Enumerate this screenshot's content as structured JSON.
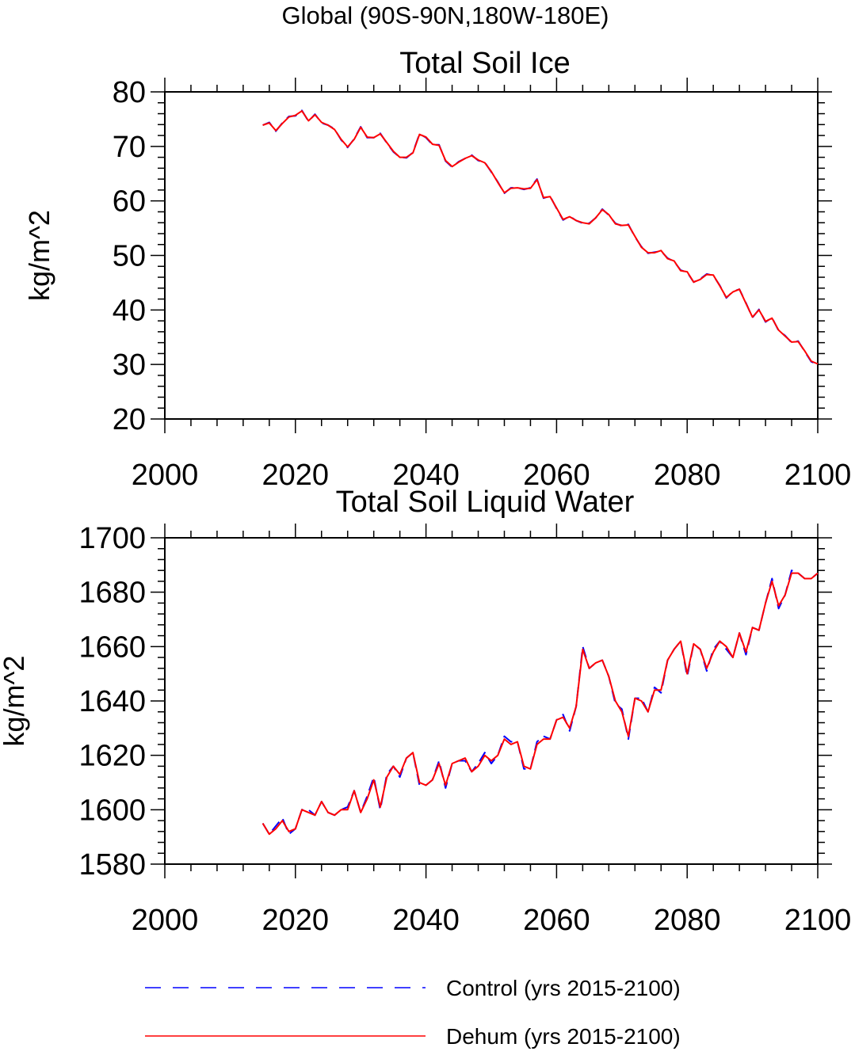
{
  "page_title": "Global (90S-90N,180W-180E)",
  "legend": {
    "items": [
      {
        "label": "Control (yrs 2015-2100)",
        "color": "#0000ff",
        "style": "dashed"
      },
      {
        "label": "Dehum (yrs 2015-2100)",
        "color": "#ff0000",
        "style": "solid"
      }
    ]
  },
  "chart_data": [
    {
      "type": "line",
      "title": "Total Soil Ice",
      "xlabel": "",
      "ylabel": "kg/m^2",
      "xlim": [
        2000,
        2100
      ],
      "ylim": [
        20,
        80
      ],
      "xticks": [
        2000,
        2020,
        2040,
        2060,
        2080,
        2100
      ],
      "yticks": [
        20,
        30,
        40,
        50,
        60,
        70,
        80
      ],
      "x_start": 2015,
      "series": [
        {
          "name": "Control (yrs 2015-2100)",
          "color": "#0000ff",
          "values": [
            73.9,
            74.4,
            72.8,
            74.3,
            75.5,
            75.6,
            76.6,
            74.6,
            75.9,
            74.3,
            73.9,
            73.2,
            71.2,
            69.8,
            71.4,
            73.6,
            71.6,
            71.6,
            72.4,
            70.6,
            69.0,
            68.0,
            67.9,
            68.9,
            72.3,
            71.6,
            70.3,
            70.3,
            67.3,
            66.2,
            67.2,
            67.8,
            68.4,
            67.4,
            67.1,
            65.3,
            63.5,
            61.4,
            62.4,
            62.4,
            62.1,
            62.4,
            64.0,
            60.5,
            60.9,
            58.6,
            56.5,
            57.2,
            56.4,
            55.9,
            55.9,
            56.9,
            58.5,
            57.4,
            55.9,
            55.4,
            55.7,
            53.4,
            51.6,
            50.4,
            50.6,
            50.8,
            49.5,
            48.9,
            47.3,
            46.9,
            45.1,
            45.7,
            46.6,
            46.3,
            44.5,
            42.2,
            43.4,
            43.8,
            41.3,
            38.6,
            40.1,
            37.8,
            38.6,
            36.2,
            35.3,
            34.0,
            34.3,
            32.4,
            30.5,
            30.0
          ]
        },
        {
          "name": "Dehum (yrs 2015-2100)",
          "color": "#ff0000",
          "values": [
            73.9,
            74.3,
            72.9,
            74.2,
            75.4,
            75.7,
            76.5,
            74.7,
            75.8,
            74.4,
            73.9,
            73.1,
            71.3,
            69.9,
            71.3,
            73.5,
            71.7,
            71.6,
            72.3,
            70.7,
            69.1,
            68.0,
            68.0,
            68.8,
            72.2,
            71.7,
            70.4,
            70.2,
            67.4,
            66.3,
            67.1,
            67.8,
            68.3,
            67.5,
            67.0,
            65.4,
            63.4,
            61.5,
            62.3,
            62.4,
            62.2,
            62.3,
            63.9,
            60.6,
            60.8,
            58.7,
            56.6,
            57.1,
            56.4,
            56.0,
            55.8,
            56.9,
            58.4,
            57.5,
            55.8,
            55.5,
            55.6,
            53.5,
            51.5,
            50.5,
            50.5,
            50.9,
            49.4,
            49.0,
            47.2,
            47.0,
            45.1,
            45.6,
            46.5,
            46.4,
            44.4,
            42.3,
            43.3,
            43.8,
            41.2,
            38.7,
            40.0,
            37.9,
            38.5,
            36.3,
            35.2,
            34.1,
            34.2,
            32.5,
            30.6,
            30.1
          ]
        }
      ]
    },
    {
      "type": "line",
      "title": "Total Soil Liquid Water",
      "xlabel": "",
      "ylabel": "kg/m^2",
      "xlim": [
        2000,
        2100
      ],
      "ylim": [
        1580,
        1700
      ],
      "xticks": [
        2000,
        2020,
        2040,
        2060,
        2080,
        2100
      ],
      "yticks": [
        1580,
        1600,
        1620,
        1640,
        1660,
        1680,
        1700
      ],
      "x_start": 2015,
      "series": [
        {
          "name": "Control (yrs 2015-2100)",
          "color": "#0000ff",
          "values": [
            1595,
            1591,
            1594,
            1597,
            1591,
            1593,
            1600,
            1600,
            1598,
            1603,
            1599,
            1598,
            1600,
            1601,
            1607,
            1599,
            1605,
            1612,
            1600,
            1613,
            1616,
            1612,
            1619,
            1621,
            1609,
            1609,
            1611,
            1618,
            1608,
            1617,
            1618,
            1618,
            1614,
            1617,
            1621,
            1617,
            1620,
            1627,
            1625,
            1625,
            1615,
            1615,
            1625,
            1627,
            1626,
            1633,
            1635,
            1629,
            1638,
            1660,
            1652,
            1654,
            1655,
            1649,
            1639,
            1637,
            1626,
            1641,
            1641,
            1636,
            1645,
            1643,
            1655,
            1659,
            1662,
            1649,
            1661,
            1659,
            1651,
            1659,
            1662,
            1659,
            1656,
            1665,
            1657,
            1667,
            1666,
            1676,
            1685,
            1674,
            1679,
            1688,
            1687,
            1685,
            1685,
            1687
          ]
        },
        {
          "name": "Dehum (yrs 2015-2100)",
          "color": "#ff0000",
          "values": [
            1595,
            1591,
            1593,
            1596,
            1592,
            1593,
            1600,
            1599,
            1598,
            1603,
            1599,
            1598,
            1600,
            1600,
            1607,
            1599,
            1604,
            1611,
            1601,
            1612,
            1616,
            1613,
            1619,
            1621,
            1610,
            1609,
            1611,
            1617,
            1609,
            1617,
            1618,
            1619,
            1614,
            1616,
            1620,
            1618,
            1620,
            1626,
            1624,
            1625,
            1616,
            1615,
            1624,
            1626,
            1626,
            1633,
            1634,
            1630,
            1638,
            1659,
            1652,
            1654,
            1655,
            1649,
            1640,
            1636,
            1627,
            1641,
            1640,
            1636,
            1644,
            1644,
            1655,
            1659,
            1662,
            1650,
            1661,
            1659,
            1652,
            1658,
            1662,
            1660,
            1656,
            1665,
            1658,
            1667,
            1666,
            1676,
            1684,
            1675,
            1679,
            1687,
            1687,
            1685,
            1685,
            1687
          ]
        }
      ]
    }
  ]
}
